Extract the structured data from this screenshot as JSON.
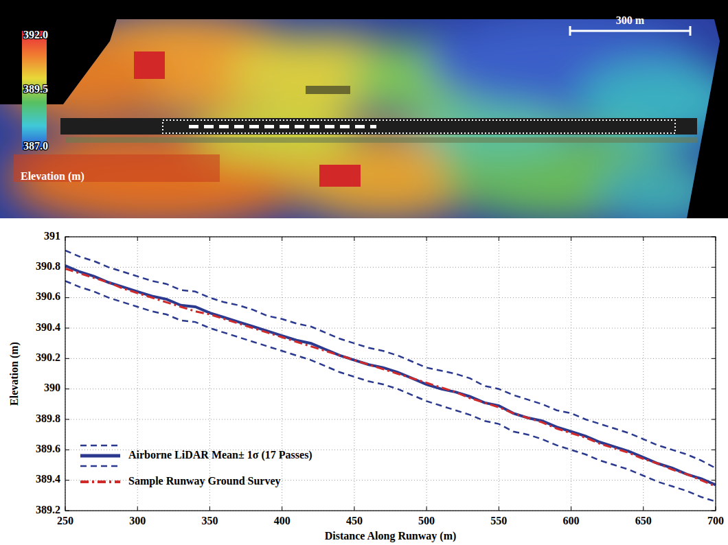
{
  "chart_data": {
    "type": "line",
    "xlabel": "Distance Along Runway (m)",
    "ylabel": "Elevation (m)",
    "x": [
      250,
      260,
      270,
      280,
      290,
      300,
      310,
      320,
      330,
      340,
      350,
      360,
      370,
      380,
      390,
      400,
      410,
      420,
      430,
      440,
      450,
      460,
      470,
      480,
      490,
      500,
      510,
      520,
      530,
      540,
      550,
      560,
      570,
      580,
      590,
      600,
      610,
      620,
      630,
      640,
      650,
      660,
      670,
      680,
      690,
      700
    ],
    "series": [
      {
        "name": "Airborne LiDAR Mean± 1σ (17 Passes)",
        "color": "#2b3a8f",
        "line_style": "solid",
        "values": [
          390.81,
          390.77,
          390.74,
          390.7,
          390.67,
          390.64,
          390.61,
          390.59,
          390.55,
          390.54,
          390.5,
          390.47,
          390.44,
          390.41,
          390.38,
          390.35,
          390.32,
          390.3,
          390.26,
          390.22,
          390.19,
          390.16,
          390.14,
          390.11,
          390.07,
          390.03,
          390.0,
          389.98,
          389.95,
          389.91,
          389.89,
          389.84,
          389.81,
          389.79,
          389.75,
          389.72,
          389.69,
          389.65,
          389.62,
          389.59,
          389.55,
          389.51,
          389.48,
          389.44,
          389.41,
          389.37
        ],
        "upper": [
          390.91,
          390.87,
          390.84,
          390.8,
          390.77,
          390.74,
          390.71,
          390.69,
          390.65,
          390.64,
          390.6,
          390.57,
          390.55,
          390.52,
          390.48,
          390.46,
          390.43,
          390.41,
          390.37,
          390.33,
          390.3,
          390.27,
          390.25,
          390.22,
          390.18,
          390.14,
          390.12,
          390.1,
          390.07,
          390.02,
          390.0,
          389.96,
          389.93,
          389.9,
          389.86,
          389.84,
          389.8,
          389.77,
          389.74,
          389.71,
          389.67,
          389.63,
          389.6,
          389.57,
          389.53,
          389.48
        ],
        "lower": [
          390.71,
          390.67,
          390.64,
          390.6,
          390.57,
          390.54,
          390.51,
          390.49,
          390.45,
          390.44,
          390.4,
          390.37,
          390.34,
          390.31,
          390.28,
          390.25,
          390.22,
          390.19,
          390.15,
          390.11,
          390.08,
          390.05,
          390.03,
          390.0,
          389.96,
          389.92,
          389.89,
          389.86,
          389.83,
          389.79,
          389.77,
          389.72,
          389.7,
          389.67,
          389.63,
          389.6,
          389.57,
          389.53,
          389.5,
          389.47,
          389.43,
          389.39,
          389.36,
          389.33,
          389.29,
          389.26
        ]
      },
      {
        "name": "Sample Runway Ground Survey",
        "color": "#d12a2a",
        "line_style": "dashdot",
        "values": [
          390.79,
          390.76,
          390.73,
          390.7,
          390.66,
          390.63,
          390.6,
          390.57,
          390.54,
          390.51,
          390.49,
          390.46,
          390.43,
          390.4,
          390.37,
          390.34,
          390.31,
          390.28,
          390.25,
          390.22,
          390.19,
          390.16,
          390.13,
          390.1,
          390.07,
          390.04,
          390.01,
          389.98,
          389.94,
          389.91,
          389.88,
          389.84,
          389.81,
          389.78,
          389.74,
          389.71,
          389.68,
          389.64,
          389.61,
          389.58,
          389.54,
          389.51,
          389.47,
          389.44,
          389.4,
          389.36
        ]
      }
    ],
    "xlim": [
      250,
      700
    ],
    "ylim": [
      389.2,
      391
    ],
    "xticks": [
      250,
      300,
      350,
      400,
      450,
      500,
      550,
      600,
      650,
      700
    ],
    "yticks": [
      389.2,
      389.4,
      389.6,
      389.8,
      390,
      390.2,
      390.4,
      390.6,
      390.8,
      391
    ],
    "grid": true,
    "legend": "lower-left"
  },
  "map": {
    "colorbar": {
      "title": "Elevation (m)",
      "range": [
        387,
        392
      ],
      "ticks": [
        {
          "value": 392,
          "label": "392.0"
        },
        {
          "value": 389.5,
          "label": "389.5"
        },
        {
          "value": 387,
          "label": "387.0"
        }
      ]
    },
    "scale_bar": {
      "label": "300 m"
    }
  }
}
